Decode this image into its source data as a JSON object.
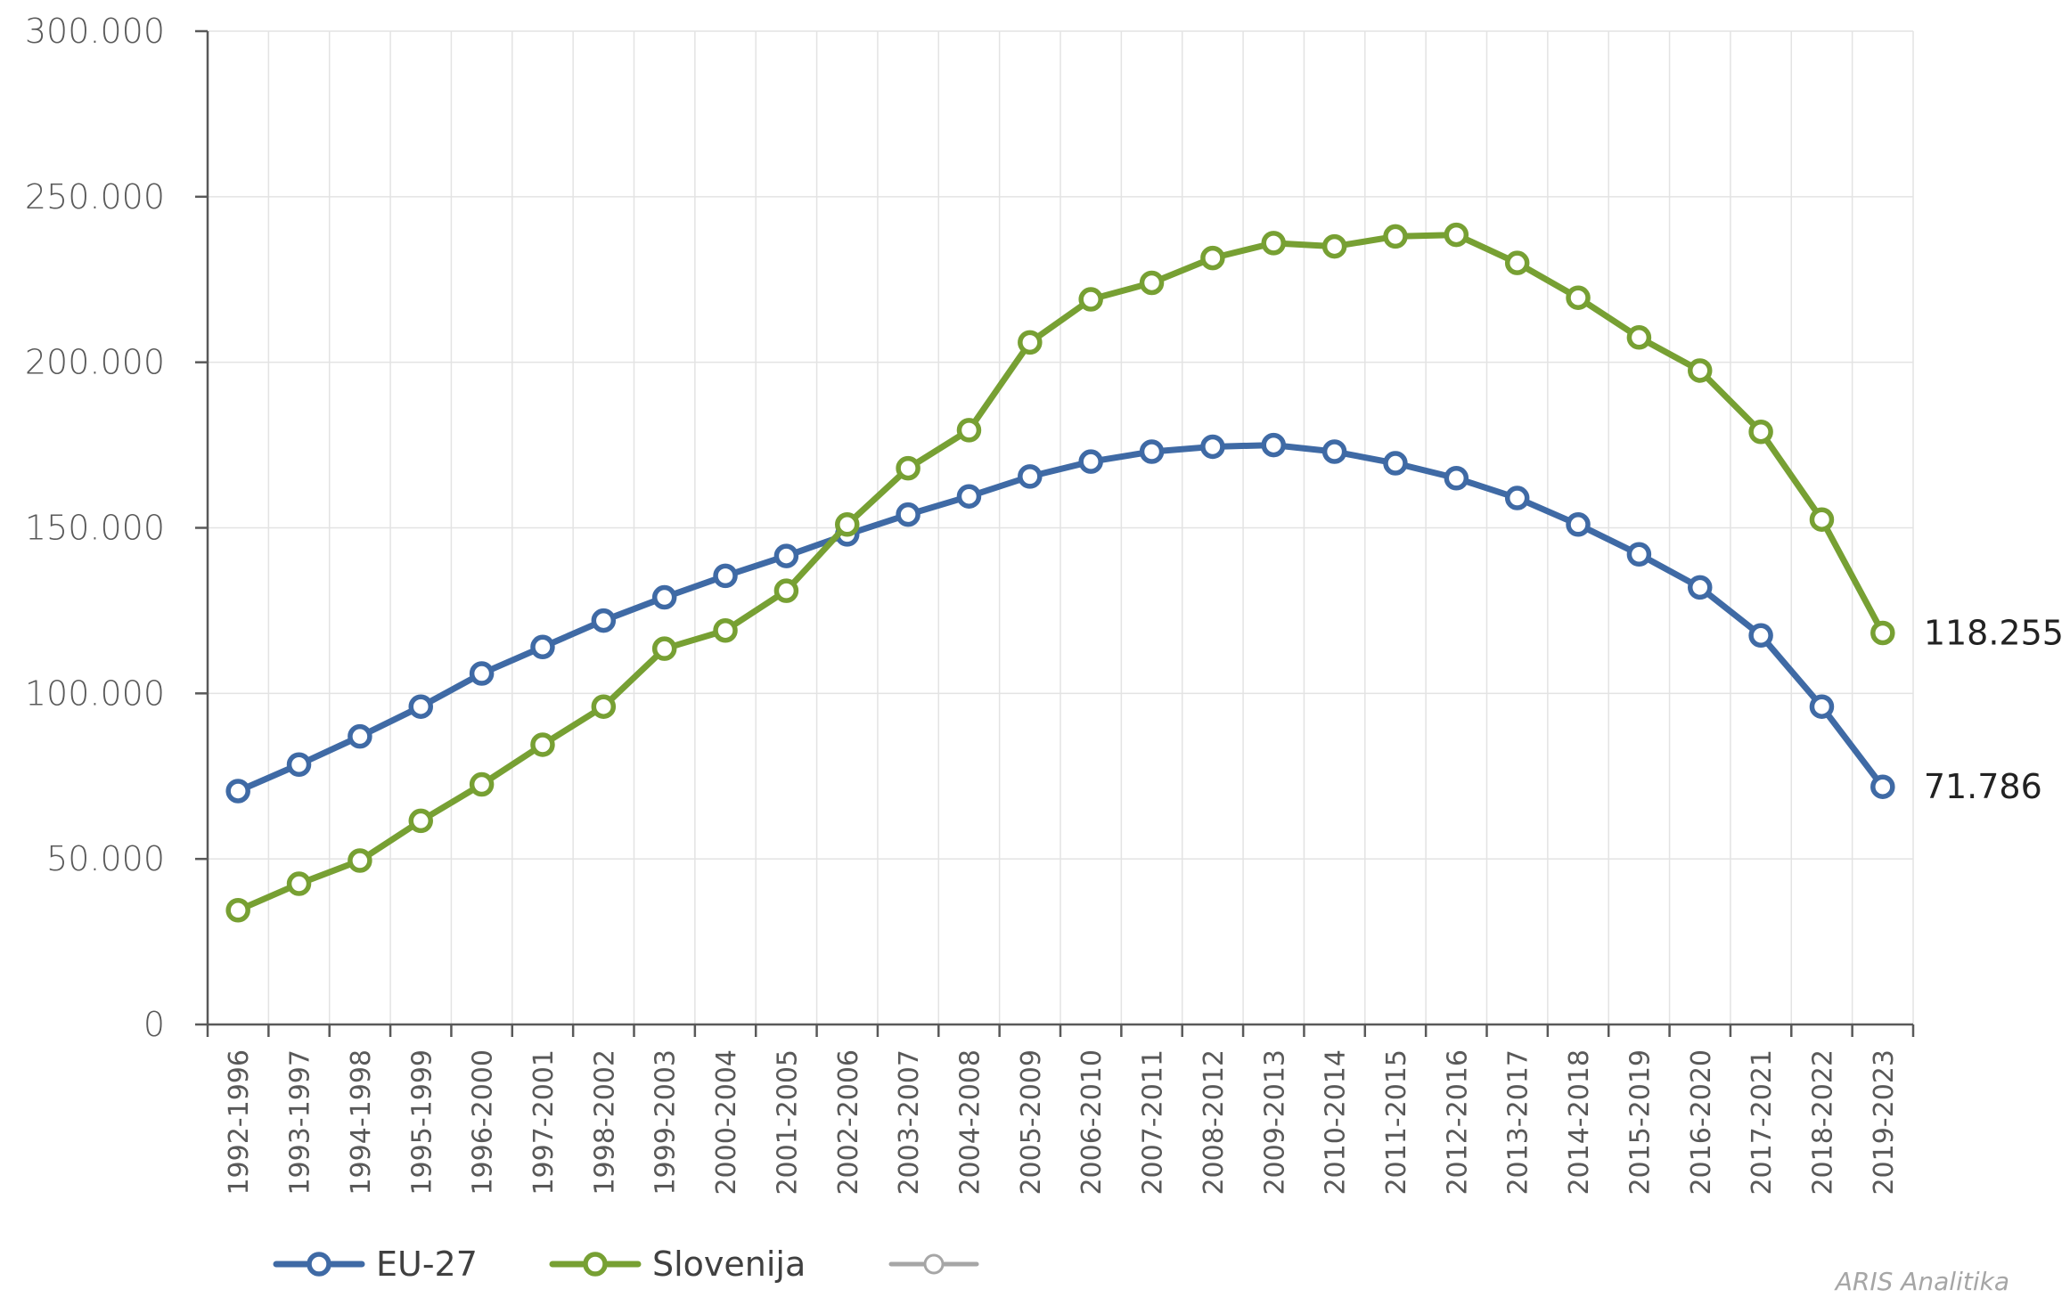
{
  "chart_data": {
    "type": "line",
    "title": "",
    "xlabel": "",
    "ylabel": "",
    "ylim": [
      0,
      300000
    ],
    "yticks": [
      0,
      50000,
      100000,
      150000,
      200000,
      250000,
      300000
    ],
    "ytick_labels": [
      "0",
      "50.000",
      "100.000",
      "150.000",
      "200.000",
      "250.000",
      "300.000"
    ],
    "grid": true,
    "legend_position": "bottom-left",
    "categories": [
      "1992-1996",
      "1993-1997",
      "1994-1998",
      "1995-1999",
      "1996-2000",
      "1997-2001",
      "1998-2002",
      "1999-2003",
      "2000-2004",
      "2001-2005",
      "2002-2006",
      "2003-2007",
      "2004-2008",
      "2005-2009",
      "2006-2010",
      "2007-2011",
      "2008-2012",
      "2009-2013",
      "2010-2014",
      "2011-2015",
      "2012-2016",
      "2013-2017",
      "2014-2018",
      "2015-2019",
      "2016-2020",
      "2017-2021",
      "2018-2022",
      "2019-2023"
    ],
    "series": [
      {
        "name": "EU-27",
        "color": "#3f6aa5",
        "values": [
          70500,
          78500,
          87000,
          96000,
          106000,
          114000,
          122000,
          129000,
          135500,
          141500,
          148000,
          154000,
          159500,
          165500,
          170000,
          173000,
          174500,
          175000,
          173000,
          169500,
          165000,
          159000,
          151000,
          142000,
          132000,
          117500,
          96000,
          71786
        ],
        "end_label": "71.786"
      },
      {
        "name": "Slovenija",
        "color": "#77a033",
        "values": [
          34500,
          42500,
          49500,
          61500,
          72500,
          84500,
          96000,
          113500,
          119000,
          131000,
          151000,
          168000,
          179500,
          206000,
          219000,
          224000,
          231500,
          236000,
          235000,
          238000,
          238500,
          230000,
          219500,
          207500,
          197500,
          179000,
          152500,
          118255
        ],
        "end_label": "118.255"
      }
    ],
    "legend": [
      {
        "label": "EU-27",
        "color": "#3f6aa5"
      },
      {
        "label": "Slovenija",
        "color": "#77a033"
      },
      {
        "label": "",
        "color": "#a6a6a6"
      }
    ],
    "credit": "ARIS Analitika"
  }
}
